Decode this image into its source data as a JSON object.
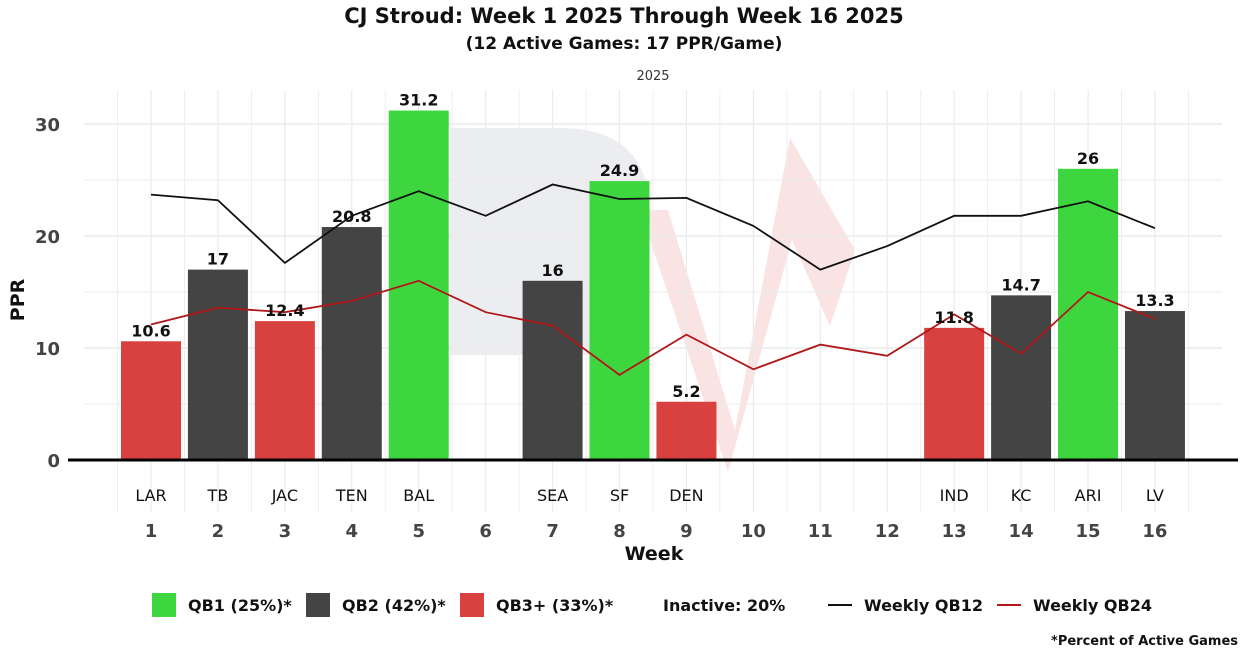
{
  "header": {
    "title": "CJ Stroud: Week 1 2025 Through Week 16 2025",
    "subtitle": "(12 Active Games: 17 PPR/Game)",
    "facet_label": "2025"
  },
  "colors": {
    "qb1": "#3ed63e",
    "qb2": "#444444",
    "qb3": "#d94040",
    "qb12_line": "#111111",
    "qb24_line": "#b01818",
    "grid": "#ebebeb"
  },
  "chart_data": {
    "type": "bar",
    "title": "CJ Stroud: Week 1 2025 Through Week 16 2025",
    "subtitle": "(12 Active Games: 17 PPR/Game)",
    "facet": "2025",
    "xlabel": "Week",
    "ylabel": "PPR",
    "ylim": [
      0,
      32
    ],
    "yticks": [
      0,
      10,
      20,
      30
    ],
    "grid": true,
    "legend_position": "bottom",
    "categories": [
      "1",
      "2",
      "3",
      "4",
      "5",
      "6",
      "7",
      "8",
      "9",
      "10",
      "11",
      "12",
      "13",
      "14",
      "15",
      "16"
    ],
    "opponents": [
      "LAR",
      "TB",
      "JAC",
      "TEN",
      "BAL",
      "",
      "SEA",
      "SF",
      "DEN",
      "",
      "",
      "",
      "IND",
      "KC",
      "ARI",
      "LV"
    ],
    "values": [
      10.6,
      17,
      12.4,
      20.8,
      31.2,
      null,
      16,
      24.9,
      5.2,
      null,
      null,
      null,
      11.8,
      14.7,
      26,
      13.3
    ],
    "tiers": [
      "QB3+",
      "QB2",
      "QB3+",
      "QB2",
      "QB1",
      null,
      "QB2",
      "QB1",
      "QB3+",
      null,
      null,
      null,
      "QB3+",
      "QB2",
      "QB1",
      "QB2"
    ],
    "series": [
      {
        "name": "Weekly QB12",
        "type": "line",
        "values": [
          23.7,
          23.2,
          17.6,
          21.8,
          24.0,
          21.8,
          24.6,
          23.3,
          23.4,
          20.9,
          17.0,
          19.1,
          21.8,
          21.8,
          23.1,
          20.7
        ]
      },
      {
        "name": "Weekly QB24",
        "type": "line",
        "values": [
          12.1,
          13.6,
          13.2,
          14.2,
          16.0,
          13.2,
          12.0,
          7.6,
          11.2,
          8.1,
          10.3,
          9.3,
          13.0,
          9.5,
          15.0,
          12.6
        ]
      }
    ]
  },
  "legend": {
    "items": [
      {
        "label": "QB1 (25%)*",
        "kind": "swatch",
        "color_key": "qb1"
      },
      {
        "label": "QB2 (42%)*",
        "kind": "swatch",
        "color_key": "qb2"
      },
      {
        "label": "QB3+ (33%)*",
        "kind": "swatch",
        "color_key": "qb3"
      },
      {
        "label": "Inactive: 20%",
        "kind": "text"
      },
      {
        "label": "Weekly QB12",
        "kind": "line",
        "color_key": "qb12_line"
      },
      {
        "label": "Weekly QB24",
        "kind": "line",
        "color_key": "qb24_line"
      }
    ],
    "footnote": "*Percent of Active Games"
  }
}
